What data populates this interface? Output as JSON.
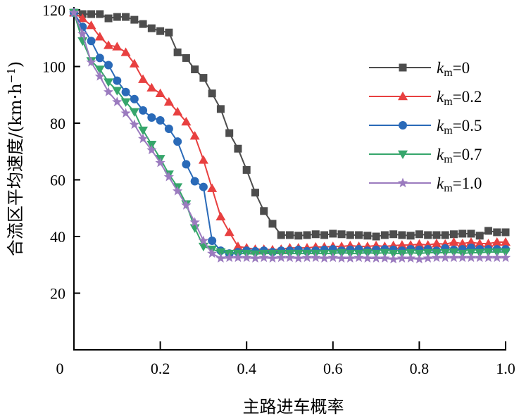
{
  "chart_data": {
    "type": "line",
    "title": "",
    "xlabel": "主路进车概率",
    "ylabel": "合流区平均速度/(km·h⁻¹)",
    "ylabel_parts": {
      "main": "合流区平均速度/(km·h",
      "sup": "−1",
      "close": ")"
    },
    "xlim": [
      0,
      1.0
    ],
    "ylim": [
      0,
      120
    ],
    "xticks": [
      0,
      0.2,
      0.4,
      0.6,
      0.8,
      1.0
    ],
    "xtick_labels": [
      "0",
      "0.2",
      "0.4",
      "0.6",
      "0.8",
      "1.0"
    ],
    "yticks": [
      20,
      40,
      60,
      80,
      100,
      120
    ],
    "ytick_labels": [
      "20",
      "40",
      "60",
      "80",
      "100",
      "120"
    ],
    "grid": false,
    "legend_position": "right",
    "x": [
      0,
      0.02,
      0.04,
      0.06,
      0.08,
      0.1,
      0.12,
      0.14,
      0.16,
      0.18,
      0.2,
      0.22,
      0.24,
      0.26,
      0.28,
      0.3,
      0.32,
      0.34,
      0.36,
      0.38,
      0.4,
      0.42,
      0.44,
      0.46,
      0.48,
      0.5,
      0.52,
      0.54,
      0.56,
      0.58,
      0.6,
      0.62,
      0.64,
      0.66,
      0.68,
      0.7,
      0.72,
      0.74,
      0.76,
      0.78,
      0.8,
      0.82,
      0.84,
      0.86,
      0.88,
      0.9,
      0.92,
      0.94,
      0.96,
      0.98,
      1.0
    ],
    "series": [
      {
        "name": "k_m=0",
        "legend_italic": "k",
        "legend_sub": "m",
        "legend_rest": "=0",
        "color": "#4d4d4d",
        "marker": "square",
        "values": [
          119,
          118.5,
          118.5,
          118.5,
          117,
          117.5,
          117.5,
          116.5,
          115,
          113.5,
          112.5,
          112,
          105,
          103,
          99,
          96,
          90.5,
          85,
          76.5,
          71,
          63.5,
          55.5,
          49,
          44.5,
          40.5,
          40.5,
          40.3,
          40.5,
          40.8,
          40.5,
          41,
          40.8,
          40.5,
          40.5,
          40.3,
          40,
          40.5,
          40.8,
          40.5,
          40.3,
          40.8,
          40.5,
          40.5,
          40.5,
          40.8,
          41,
          41,
          40.3,
          42,
          41.5,
          41.5
        ]
      },
      {
        "name": "k_m=0.2",
        "legend_italic": "k",
        "legend_sub": "m",
        "legend_rest": "=0.2",
        "color": "#e84040",
        "marker": "triangle-up",
        "values": [
          119,
          117,
          114.5,
          110.5,
          107.5,
          107,
          105,
          101,
          95.5,
          92.5,
          90.5,
          87.5,
          84,
          80.5,
          75.5,
          67,
          57,
          47,
          41.5,
          36.5,
          36,
          35.5,
          35.5,
          35.3,
          35.5,
          36,
          36,
          36,
          36.3,
          36.3,
          36.5,
          36.5,
          36.8,
          36.5,
          36.5,
          36.8,
          36.5,
          36.8,
          37,
          37,
          37.3,
          37,
          37.5,
          37.3,
          38,
          37.5,
          38,
          37.5,
          37.5,
          38,
          38
        ]
      },
      {
        "name": "k_m=0.5",
        "legend_italic": "k",
        "legend_sub": "m",
        "legend_rest": "=0.5",
        "color": "#2a6ab8",
        "marker": "circle",
        "values": [
          119,
          114,
          109,
          103,
          100.5,
          95,
          91,
          88.5,
          84.5,
          82,
          81,
          78,
          73.5,
          65.5,
          59.5,
          57.5,
          38.5,
          35,
          34,
          34.5,
          35,
          34.8,
          35,
          34.5,
          35,
          35,
          35.3,
          34.8,
          35,
          35.3,
          35.5,
          35,
          35.3,
          35.5,
          35,
          35.3,
          35.5,
          35.3,
          35,
          35.5,
          35.3,
          35.5,
          35,
          35.8,
          35.3,
          35.5,
          36,
          35.5,
          35.5,
          35.5,
          35.5
        ]
      },
      {
        "name": "k_m=0.7",
        "legend_italic": "k",
        "legend_sub": "m",
        "legend_rest": "=0.7",
        "color": "#36a66b",
        "marker": "triangle-down",
        "values": [
          119,
          109,
          102,
          99,
          94.5,
          91.5,
          87.5,
          84,
          77.5,
          72.5,
          67.5,
          62,
          57.5,
          51.5,
          43,
          36.5,
          35.5,
          34.5,
          34,
          34,
          34,
          33.8,
          34,
          34,
          34,
          34,
          34,
          34,
          34,
          34,
          34,
          34.3,
          34,
          34,
          34.3,
          34,
          34.3,
          34,
          34,
          34.3,
          34,
          34.3,
          34.3,
          34.3,
          34.5,
          34,
          34.3,
          34.3,
          34.5,
          34.5,
          34.5
        ]
      },
      {
        "name": "k_m=1.0",
        "legend_italic": "k",
        "legend_sub": "m",
        "legend_rest": "=1.0",
        "color": "#9b7bbf",
        "marker": "star",
        "values": [
          119,
          111.5,
          101.5,
          96.5,
          91,
          87.5,
          83.5,
          79.5,
          74.5,
          70.5,
          66,
          61,
          56,
          51,
          45,
          38.5,
          34,
          32.3,
          32.5,
          32.5,
          32.5,
          32.3,
          32.5,
          32.3,
          32.5,
          32.5,
          32.3,
          32.5,
          32.5,
          32.3,
          32.5,
          32.3,
          32.3,
          32.5,
          32.3,
          32.3,
          32.3,
          32,
          32.3,
          32.3,
          32,
          32.3,
          32.5,
          32.5,
          32.5,
          32.5,
          32.5,
          32.5,
          32.5,
          32.5,
          32.5
        ]
      }
    ]
  }
}
